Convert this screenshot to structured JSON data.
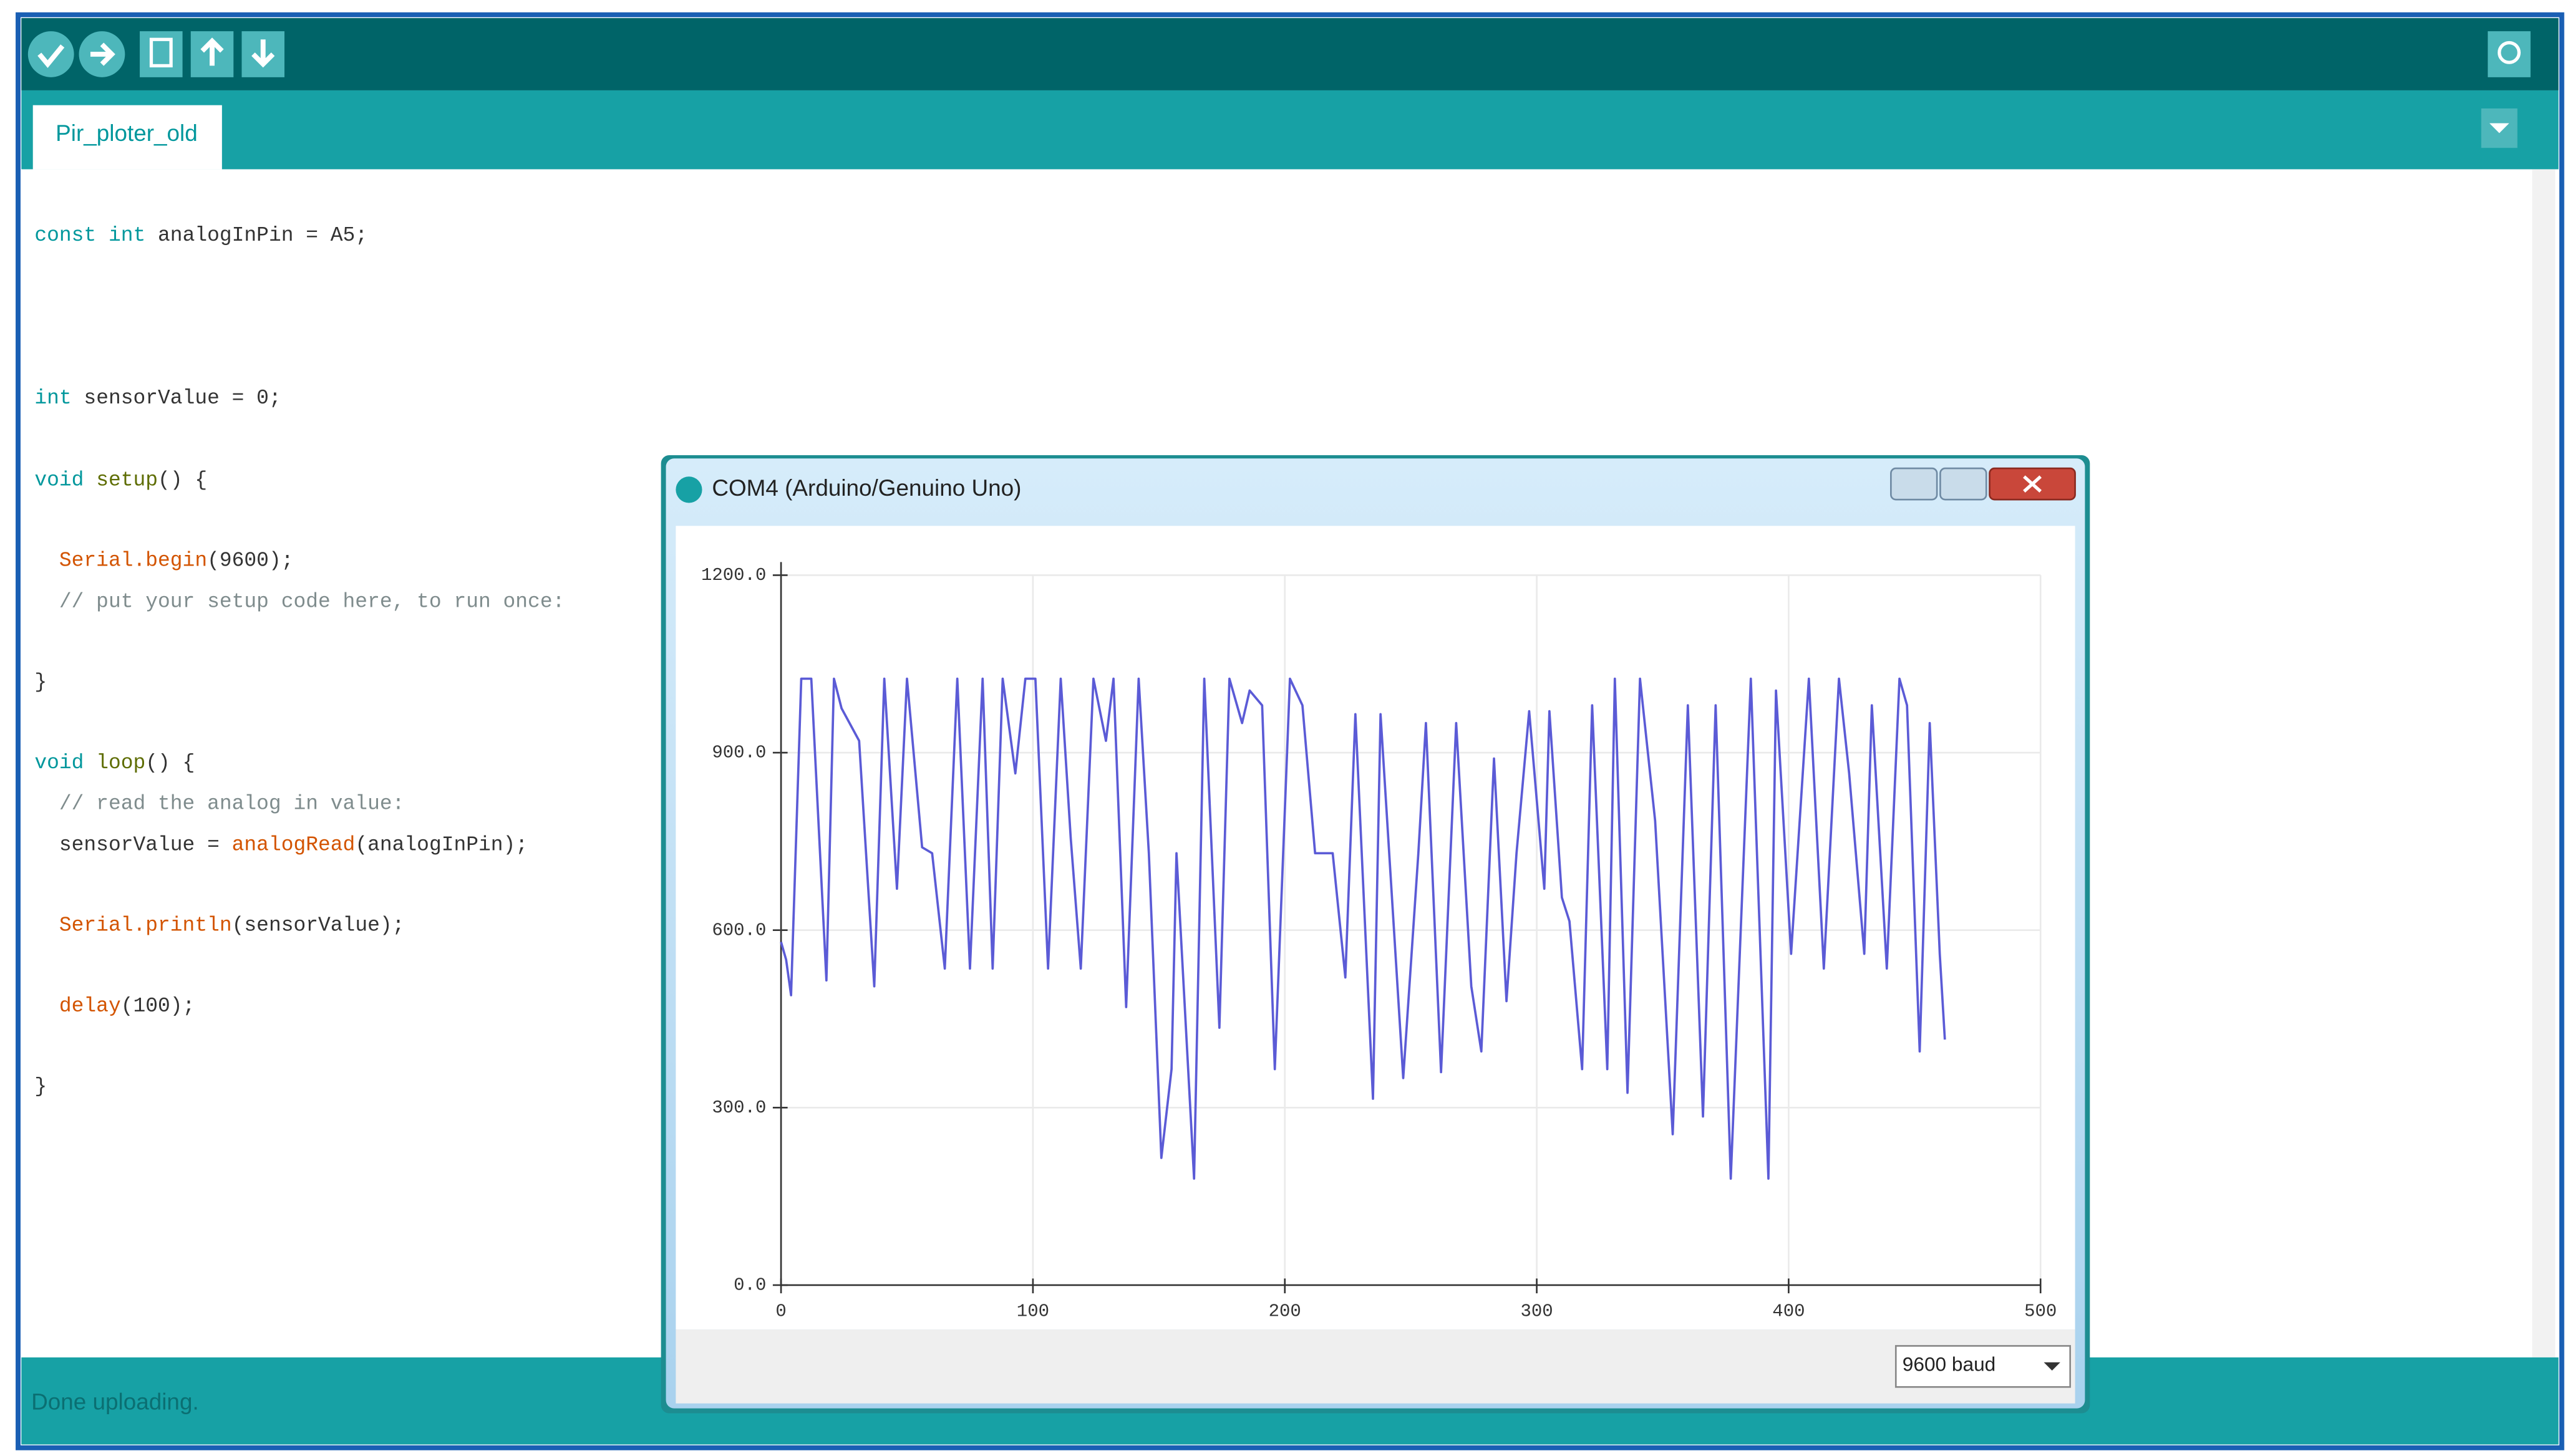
{
  "tab": "Pir_ploter_old",
  "code": [
    [
      {
        "text": "const int",
        "color": "#00979c"
      },
      {
        "text": " analogInPin = A5;",
        "color": "#333333"
      }
    ],
    [
      {
        "text": "int",
        "color": "#00979c"
      },
      {
        "text": " sensorValue = 0;",
        "color": "#333333"
      }
    ],
    [
      {
        "text": "void",
        "color": "#00979c"
      },
      {
        "text": " setup",
        "color": "#5e6d03"
      },
      {
        "text": "() {",
        "color": "#333333"
      }
    ],
    [
      {
        "text": "  Serial.begin",
        "color": "#d35400"
      },
      {
        "text": "(9600);",
        "color": "#333333"
      }
    ],
    [
      {
        "text": "  // put your setup code here, to run once:",
        "color": "#7f8c8d"
      }
    ],
    [
      {
        "text": "}",
        "color": "#333333"
      }
    ],
    [
      {
        "text": "void",
        "color": "#00979c"
      },
      {
        "text": " loop",
        "color": "#5e6d03"
      },
      {
        "text": "() {",
        "color": "#333333"
      }
    ],
    [
      {
        "text": "  // read the analog in value:",
        "color": "#7f8c8d"
      }
    ],
    [
      {
        "text": "  sensorValue = ",
        "color": "#333333"
      },
      {
        "text": "analogRead",
        "color": "#d35400"
      },
      {
        "text": "(analogInPin);",
        "color": "#333333"
      }
    ],
    [
      {
        "text": "  Serial.println",
        "color": "#d35400"
      },
      {
        "text": "(sensorValue);",
        "color": "#333333"
      }
    ],
    [
      {
        "text": "  delay",
        "color": "#d35400"
      },
      {
        "text": "(100);",
        "color": "#333333"
      }
    ],
    [
      {
        "text": "}",
        "color": "#333333"
      }
    ]
  ],
  "status": "Done uploading.",
  "window_title": "COM4 (Arduino/Genuino Uno)",
  "baud": "9600 baud",
  "chart_data": {
    "type": "line",
    "color": "#5b5bd6",
    "grid": true,
    "xlim": [
      0,
      500
    ],
    "xticks": [
      0,
      100,
      200,
      300,
      400,
      500
    ],
    "ylim": [
      0,
      1200
    ],
    "yticks": [
      {
        "value": 0,
        "label": "0.0"
      },
      {
        "value": 300,
        "label": "300.0"
      },
      {
        "value": 600,
        "label": "600.0"
      },
      {
        "value": 900,
        "label": "900.0"
      },
      {
        "value": 1200,
        "label": "1200.0"
      }
    ],
    "x": [
      0,
      2,
      4,
      8,
      12,
      18,
      21,
      24,
      31,
      37,
      41,
      46,
      50,
      56,
      60,
      65,
      70,
      75,
      80,
      84,
      88,
      93,
      97,
      101,
      106,
      111,
      115,
      119,
      124,
      129,
      132,
      137,
      142,
      146,
      151,
      155,
      157,
      164,
      168,
      174,
      178,
      183,
      186,
      191,
      196,
      202,
      207,
      212,
      219,
      224,
      228,
      235,
      238,
      247,
      253,
      256,
      262,
      268,
      274,
      278,
      283,
      288,
      292,
      297,
      303,
      305,
      310,
      313,
      318,
      322,
      328,
      331,
      336,
      341,
      347,
      354,
      360,
      366,
      371,
      377,
      385,
      392,
      395,
      401,
      408,
      414,
      420,
      424,
      430,
      433,
      439,
      444,
      447,
      452,
      456,
      460,
      462
    ],
    "values": [
      580,
      550,
      490,
      1025,
      1025,
      515,
      1025,
      975,
      920,
      505,
      1025,
      670,
      1025,
      740,
      730,
      535,
      1025,
      535,
      1025,
      535,
      1025,
      865,
      1025,
      1025,
      535,
      1025,
      755,
      535,
      1025,
      920,
      1025,
      470,
      1025,
      730,
      215,
      365,
      730,
      180,
      1025,
      435,
      1025,
      950,
      1005,
      980,
      365,
      1025,
      980,
      730,
      730,
      520,
      965,
      315,
      965,
      350,
      730,
      950,
      360,
      950,
      505,
      395,
      890,
      480,
      730,
      970,
      670,
      970,
      655,
      615,
      365,
      980,
      365,
      1025,
      325,
      1025,
      785,
      255,
      980,
      285,
      980,
      180,
      1025,
      180,
      1005,
      560,
      1025,
      535,
      1025,
      865,
      560,
      980,
      535,
      1025,
      980,
      395,
      950,
      560,
      415
    ]
  }
}
